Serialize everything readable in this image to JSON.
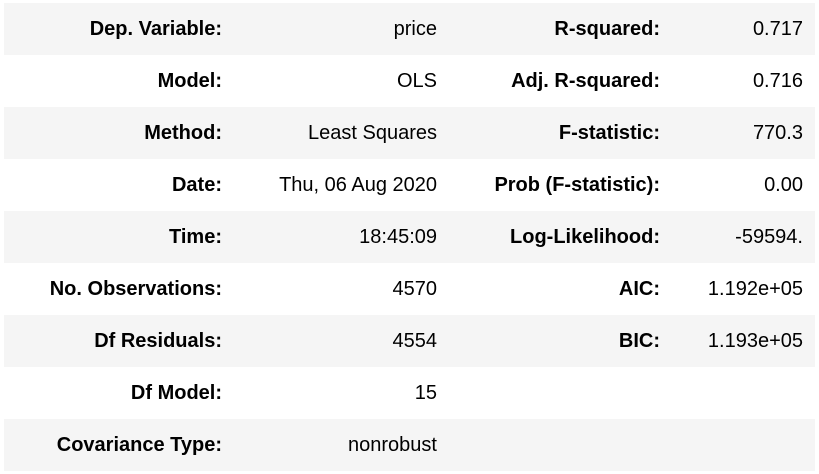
{
  "rows": [
    {
      "left_label": "Dep. Variable:",
      "left_value": "price",
      "right_label": "R-squared:",
      "right_value": "0.717"
    },
    {
      "left_label": "Model:",
      "left_value": "OLS",
      "right_label": "Adj. R-squared:",
      "right_value": "0.716"
    },
    {
      "left_label": "Method:",
      "left_value": "Least Squares",
      "right_label": "F-statistic:",
      "right_value": "770.3"
    },
    {
      "left_label": "Date:",
      "left_value": "Thu, 06 Aug 2020",
      "right_label": "Prob (F-statistic):",
      "right_value": "0.00"
    },
    {
      "left_label": "Time:",
      "left_value": "18:45:09",
      "right_label": "Log-Likelihood:",
      "right_value": "-59594."
    },
    {
      "left_label": "No. Observations:",
      "left_value": "4570",
      "right_label": "AIC:",
      "right_value": "1.192e+05"
    },
    {
      "left_label": "Df Residuals:",
      "left_value": "4554",
      "right_label": "BIC:",
      "right_value": "1.193e+05"
    },
    {
      "left_label": "Df Model:",
      "left_value": "15",
      "right_label": "",
      "right_value": ""
    },
    {
      "left_label": "Covariance Type:",
      "left_value": "nonrobust",
      "right_label": "",
      "right_value": ""
    }
  ]
}
